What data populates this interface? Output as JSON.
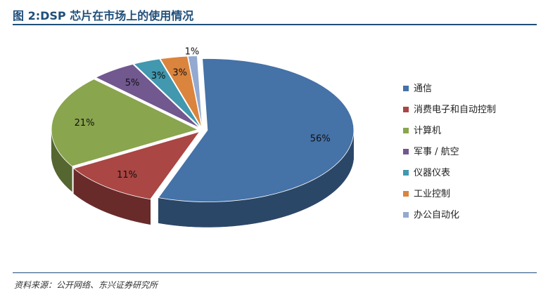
{
  "header": {
    "title": "图 2:DSP 芯片在市场上的使用情况"
  },
  "footer": {
    "source": "资料来源：公开网络、东兴证券研究所"
  },
  "chart_data": {
    "type": "pie",
    "style": "3d-exploded",
    "legend_position": "right",
    "slices": [
      {
        "label": "通信",
        "value": 56,
        "display": "56%",
        "color": "#4572a7"
      },
      {
        "label": "消费电子和自动控制",
        "value": 11,
        "display": "11%",
        "color": "#aa4643"
      },
      {
        "label": "计算机",
        "value": 21,
        "display": "21%",
        "color": "#89a54e"
      },
      {
        "label": "军事 / 航空",
        "value": 5,
        "display": "5%",
        "color": "#71588f"
      },
      {
        "label": "仪器仪表",
        "value": 3,
        "display": "3%",
        "color": "#4198af"
      },
      {
        "label": "工业控制",
        "value": 3,
        "display": "3%",
        "color": "#db843d"
      },
      {
        "label": "办公自动化",
        "value": 1,
        "display": "1%",
        "color": "#93a9cf"
      }
    ]
  }
}
